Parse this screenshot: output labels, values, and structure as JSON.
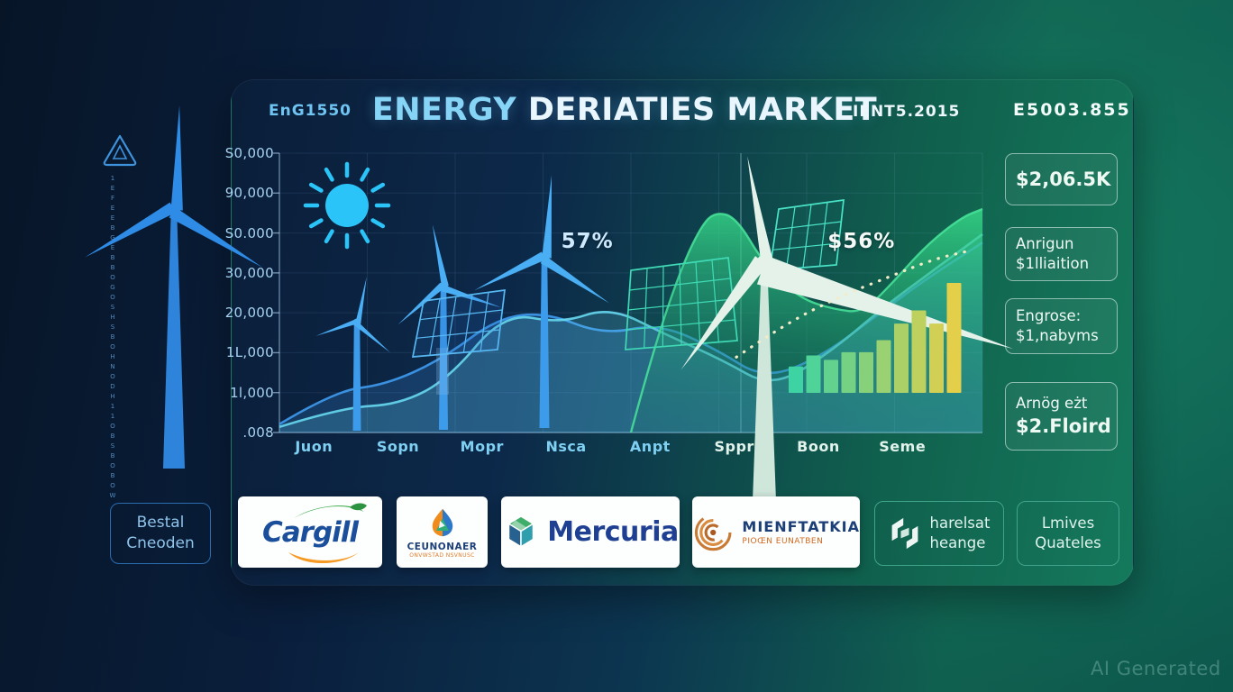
{
  "header": {
    "left_code": "EnG1550",
    "title_part1": "ENERGY",
    "title_part2": "DERIATIES MARKET",
    "right_code": "IENT5.2015",
    "far_right_code": "E5003.855"
  },
  "chart_data": {
    "type": "area",
    "title": "ENERGY DERIATIES MARKET",
    "grid": true,
    "xlabel": "",
    "ylabel": "",
    "y_tick_labels": [
      "S0,000",
      "90,000",
      "S0.000",
      "30,000",
      "20,000",
      "1L,000",
      "1l,000",
      ".008"
    ],
    "x_tick_labels": [
      "Juon",
      "Sopn",
      "Mopr",
      "Nsca",
      "Anpt",
      "Sppr",
      "Boon",
      "Seme"
    ],
    "annotations": [
      {
        "text": "57%",
        "x": 43.8,
        "y": 31.5,
        "color": "#cfe9ff"
      },
      {
        "text": "$56%",
        "x": 82.8,
        "y": 31.5,
        "color": "#f4f9f6"
      }
    ],
    "series": [
      {
        "name": "primary-wave",
        "type": "area-line",
        "color": "#3f9bf0",
        "points_pct": [
          [
            0,
            97
          ],
          [
            8,
            85
          ],
          [
            15,
            83
          ],
          [
            23,
            74
          ],
          [
            31,
            59
          ],
          [
            38,
            57
          ],
          [
            46,
            65
          ],
          [
            54,
            61
          ],
          [
            62,
            70
          ],
          [
            69,
            81
          ],
          [
            77,
            73
          ],
          [
            85,
            58
          ],
          [
            92,
            45
          ],
          [
            100,
            32
          ]
        ]
      },
      {
        "name": "secondary-wave",
        "type": "area-line",
        "color": "#67d8f0",
        "points_pct": [
          [
            0,
            98
          ],
          [
            9,
            91
          ],
          [
            17,
            90
          ],
          [
            24,
            81
          ],
          [
            32,
            57
          ],
          [
            40,
            61
          ],
          [
            47,
            55
          ],
          [
            55,
            65
          ],
          [
            63,
            74
          ],
          [
            70,
            84
          ],
          [
            78,
            72
          ],
          [
            86,
            55
          ],
          [
            93,
            42
          ],
          [
            100,
            29
          ]
        ]
      },
      {
        "name": "green-growth-area",
        "type": "area",
        "color": "#2ecc71",
        "points_pct": [
          [
            50,
            100
          ],
          [
            53,
            72
          ],
          [
            57,
            42
          ],
          [
            60,
            26
          ],
          [
            62,
            21
          ],
          [
            65,
            23
          ],
          [
            69,
            40
          ],
          [
            74,
            52
          ],
          [
            79,
            56
          ],
          [
            83,
            57
          ],
          [
            87,
            47
          ],
          [
            92,
            33
          ],
          [
            97,
            23
          ],
          [
            100,
            20
          ]
        ]
      },
      {
        "name": "forecast-dotted",
        "type": "dotted-line",
        "color": "#f2ecc8",
        "points_pct": [
          [
            65,
            73
          ],
          [
            72,
            61
          ],
          [
            80,
            51
          ],
          [
            87,
            44
          ],
          [
            93,
            38
          ],
          [
            98,
            35
          ]
        ]
      },
      {
        "name": "volume-bars",
        "type": "bar",
        "values": [
          24,
          34,
          30,
          37,
          37,
          48,
          63,
          75,
          63,
          100
        ],
        "color_start": "#3ed3a3",
        "color_end": "#e3cf4a"
      }
    ]
  },
  "stats": [
    {
      "lines": [
        "$2,06.5K",
        ""
      ]
    },
    {
      "lines": [
        "Anrigun",
        "$1lliaition"
      ]
    },
    {
      "lines": [
        "Engrose:",
        "$1,nabyms"
      ]
    },
    {
      "lines": [
        "Arnög eżt",
        "$2.Floird"
      ]
    }
  ],
  "logos": {
    "box1": {
      "line1": "Bestal",
      "line2": "Cneoden"
    },
    "cargill": {
      "name": "Cargill"
    },
    "ceunonaer": {
      "name": "CEUNONAER",
      "subtext": "ONVWSTAD NSVNUSC"
    },
    "mercuria": {
      "name": "Mercuria"
    },
    "mienftatkia": {
      "name": "MIENFTATKIA",
      "subtext": "PIOŒN EUNATBEN"
    },
    "harelsat": {
      "line1": "harelsat",
      "line2": "heange"
    },
    "lmives": {
      "line1": "Lmives",
      "line2": "Quateles"
    }
  },
  "left_decor": {
    "vertical_glyphs": "1EFEEBGEBBOGOSHSBOHNODH11OBSBOBOW"
  },
  "watermark": "AI Generated",
  "colors": {
    "background_navy": "#0a1f3d",
    "background_teal": "#10604f",
    "accent_blue": "#3f9bf0",
    "accent_cyan": "#67d8f0",
    "accent_green": "#2ecc71",
    "bar_yellow": "#e3cf4a"
  }
}
